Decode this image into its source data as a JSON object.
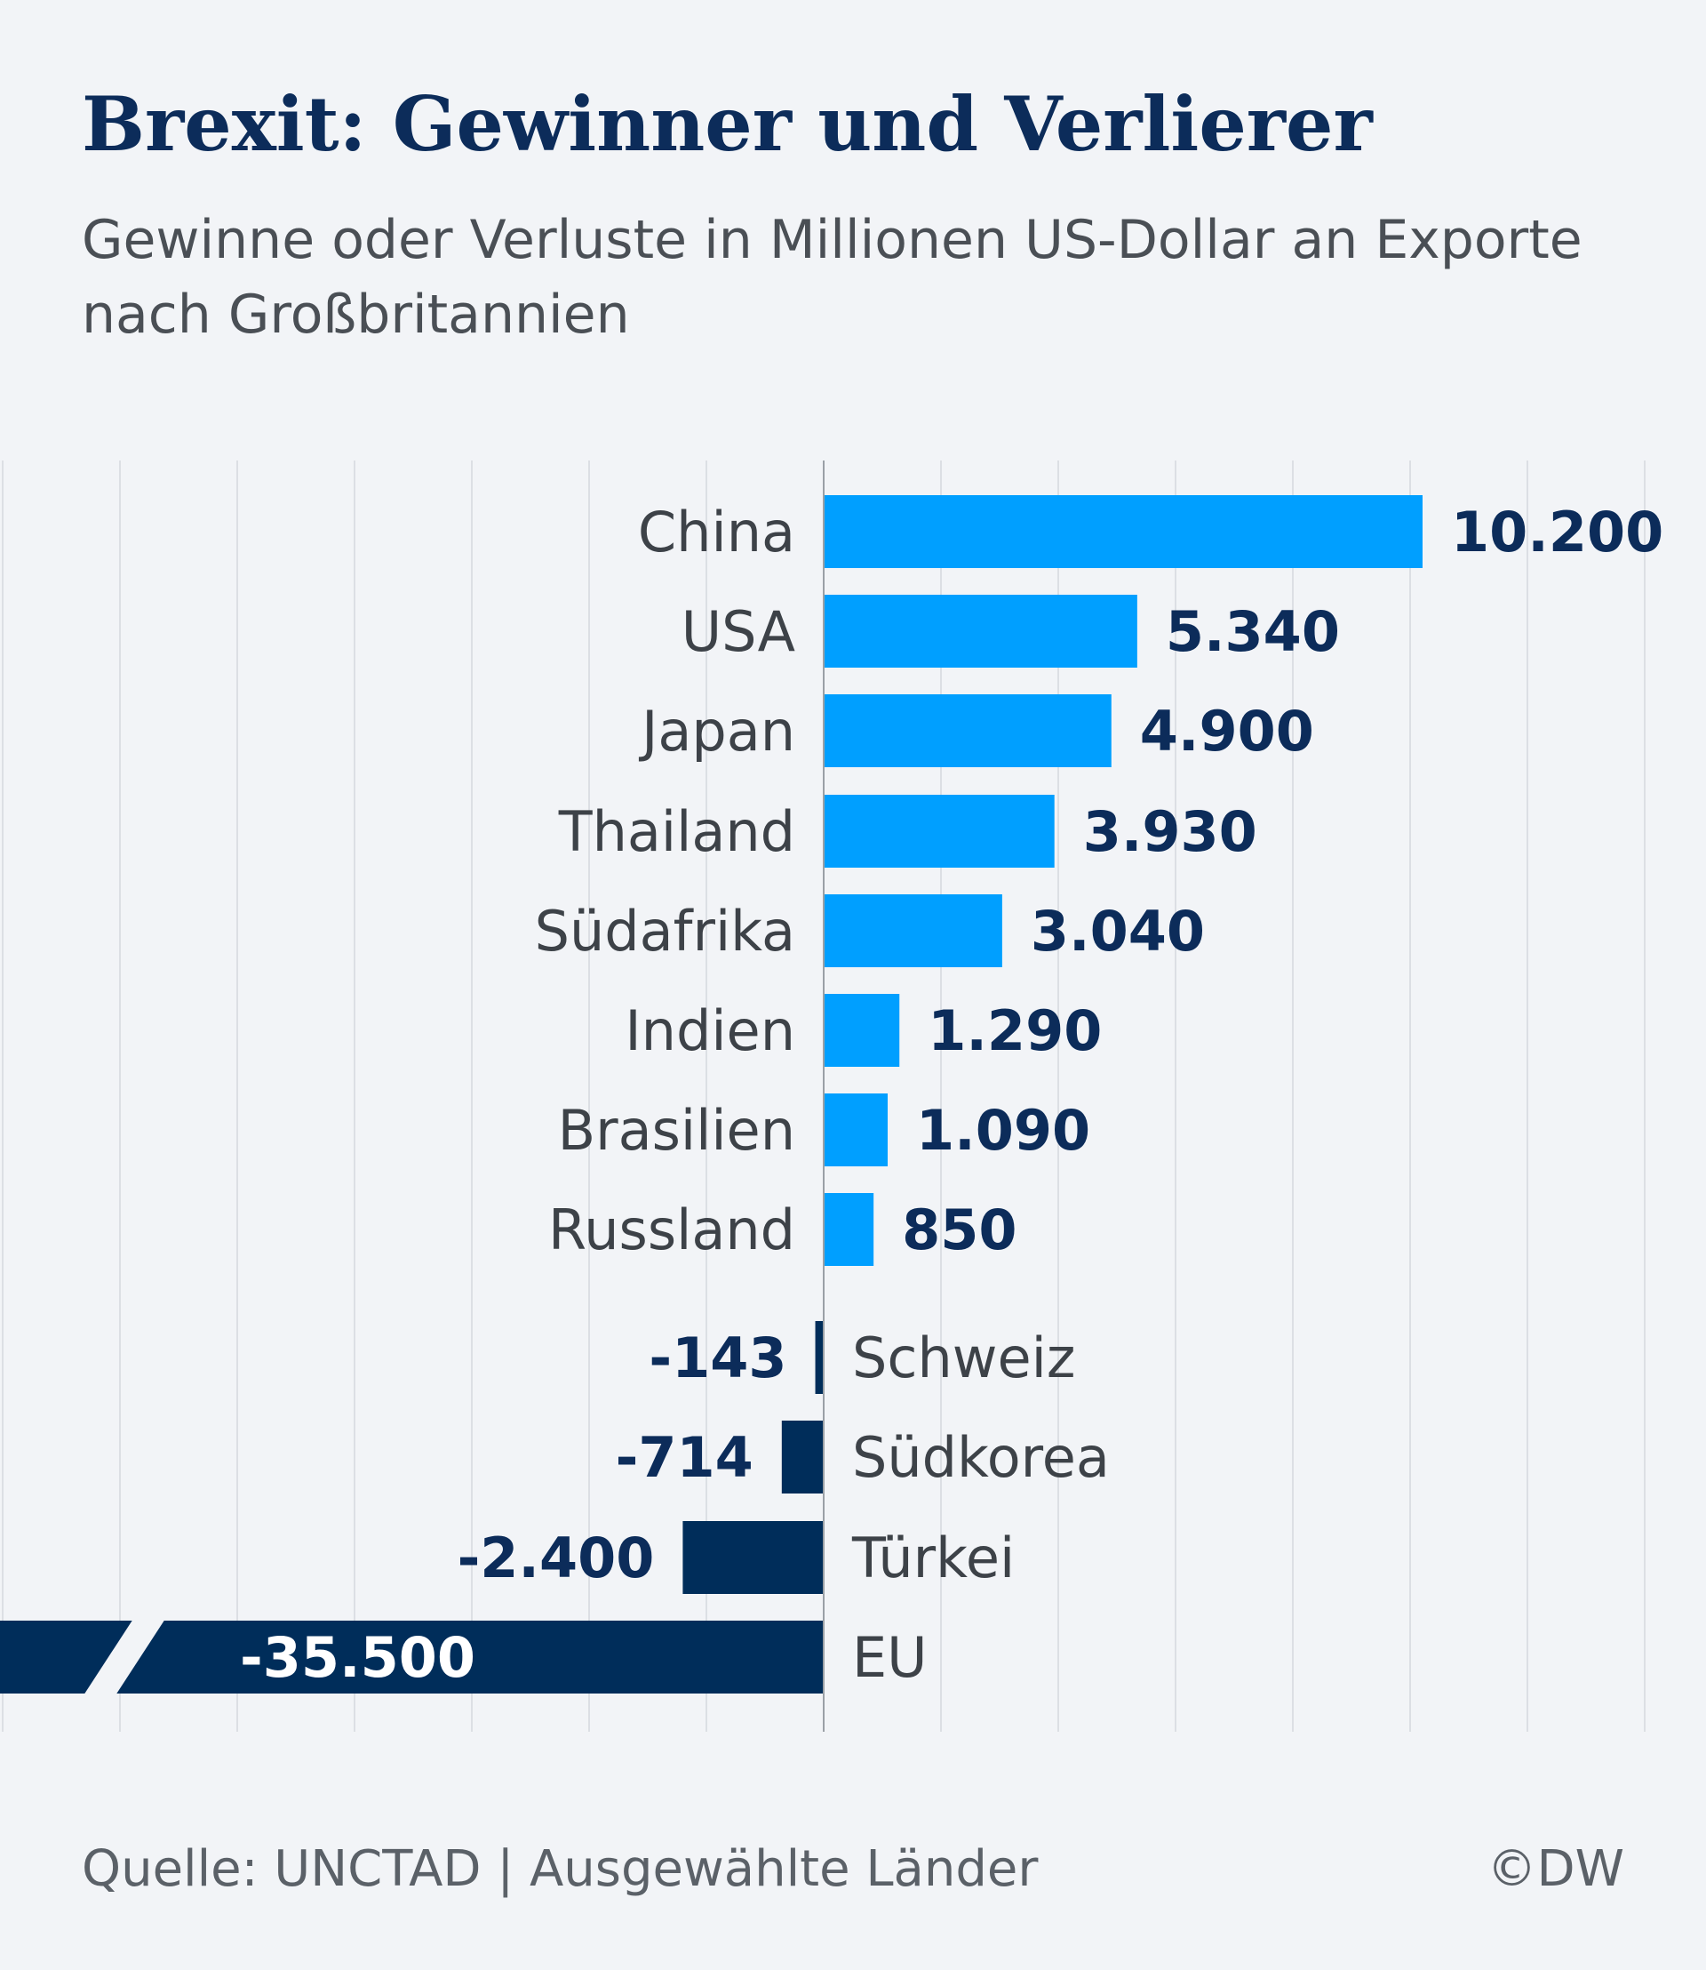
{
  "header": {
    "title": "Brexit: Gewinner und Verlierer",
    "subtitle": "Gewinne oder Verluste in Millionen US-Dollar an Exporte nach Großbritannien"
  },
  "footer": {
    "source": "Quelle: UNCTAD | Ausgewählte Länder",
    "brand": "©DW"
  },
  "colors": {
    "positive": "#009fff",
    "negative": "#002d5a",
    "label": "#3d4248",
    "value": "#0c2c5a",
    "grid": "#dcdfe4",
    "axis": "#9aa0a6"
  },
  "chart_data": {
    "type": "bar",
    "orientation": "horizontal",
    "categories": [
      "China",
      "USA",
      "Japan",
      "Thailand",
      "Südafrika",
      "Indien",
      "Brasilien",
      "Russland",
      "Schweiz",
      "Südkorea",
      "Türkei",
      "EU"
    ],
    "values": [
      10200,
      5340,
      4900,
      3930,
      3040,
      1290,
      1090,
      850,
      -143,
      -714,
      -2400,
      -35500
    ],
    "value_labels": [
      "10.200",
      "5.340",
      "4.900",
      "3.930",
      "3.040",
      "1.290",
      "1.090",
      "850",
      "-143",
      "-714",
      "-2.400",
      "-35.500"
    ],
    "xlim": [
      -14000,
      12000
    ],
    "axis_break": {
      "category": "EU"
    },
    "grid": true,
    "legend": "none"
  }
}
